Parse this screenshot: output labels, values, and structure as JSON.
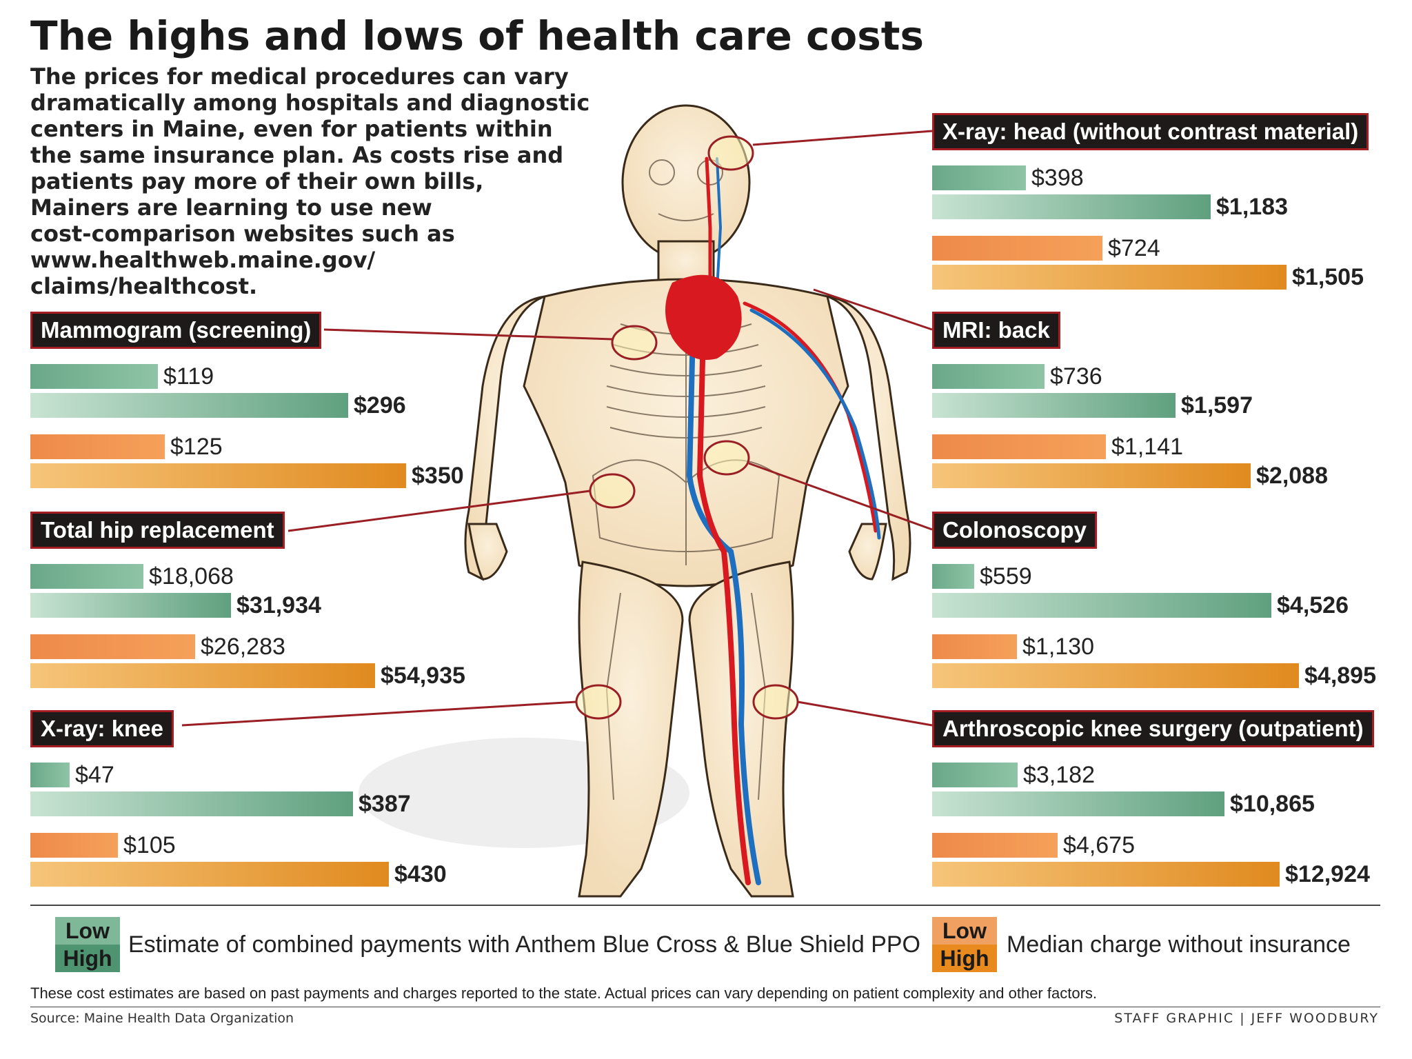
{
  "title": "The highs and lows of health care costs",
  "intro_lines": [
    "The prices for medical procedures can vary",
    "dramatically among hospitals and diagnostic",
    "centers in Maine, even for patients within",
    "the same insurance plan. As costs rise and",
    "patients pay more of their own bills,",
    "Mainers are learning to use new",
    "cost-comparison websites such as",
    "www.healthweb.maine.gov/",
    "claims/healthcost."
  ],
  "colors": {
    "anthem": "#6aa889",
    "median": "#ee8a3a",
    "label_bg": "#1e1a1a",
    "label_border": "#a31d22",
    "leader_line": "#9a1f24"
  },
  "chart_data": {
    "type": "bar",
    "scale": "each procedure scaled to its own maximum",
    "series": [
      {
        "name": "Estimate of combined payments with Anthem Blue Cross & Blue Shield PPO",
        "keys": [
          "Low",
          "High"
        ]
      },
      {
        "name": "Median charge without insurance",
        "keys": [
          "Low",
          "High"
        ]
      }
    ],
    "procedures": [
      {
        "name": "Mammogram (screening)",
        "anthem_low": 119,
        "anthem_high": 296,
        "median_low": 125,
        "median_high": 350,
        "labels": [
          "$119",
          "$296",
          "$125",
          "$350"
        ]
      },
      {
        "name": "Total hip replacement",
        "anthem_low": 18068,
        "anthem_high": 31934,
        "median_low": 26283,
        "median_high": 54935,
        "labels": [
          "$18,068",
          "$31,934",
          "$26,283",
          "$54,935"
        ]
      },
      {
        "name": "X-ray: knee",
        "anthem_low": 47,
        "anthem_high": 387,
        "median_low": 105,
        "median_high": 430,
        "labels": [
          "$47",
          "$387",
          "$105",
          "$430"
        ]
      },
      {
        "name": "X-ray: head (without contrast material)",
        "anthem_low": 398,
        "anthem_high": 1183,
        "median_low": 724,
        "median_high": 1505,
        "labels": [
          "$398",
          "$1,183",
          "$724",
          "$1,505"
        ]
      },
      {
        "name": "MRI: back",
        "anthem_low": 736,
        "anthem_high": 1597,
        "median_low": 1141,
        "median_high": 2088,
        "labels": [
          "$736",
          "$1,597",
          "$1,141",
          "$2,088"
        ]
      },
      {
        "name": "Colonoscopy",
        "anthem_low": 559,
        "anthem_high": 4526,
        "median_low": 1130,
        "median_high": 4895,
        "labels": [
          "$559",
          "$4,526",
          "$1,130",
          "$4,895"
        ]
      },
      {
        "name": "Arthroscopic knee surgery (outpatient)",
        "anthem_low": 3182,
        "anthem_high": 10865,
        "median_low": 4675,
        "median_high": 12924,
        "labels": [
          "$3,182",
          "$10,865",
          "$4,675",
          "$12,924"
        ]
      }
    ]
  },
  "legend": {
    "anthem_low": "Low",
    "anthem_high": "High",
    "anthem_text": "Estimate of combined payments with Anthem Blue Cross & Blue Shield PPO",
    "median_low": "Low",
    "median_high": "High",
    "median_text": "Median charge without insurance"
  },
  "footnote": "These cost estimates are based on past payments and charges reported to the state. Actual prices can vary depending on patient complexity and other factors.",
  "source": "Source: Maine Health Data Organization",
  "credit": "STAFF GRAPHIC | JEFF WOODBURY"
}
